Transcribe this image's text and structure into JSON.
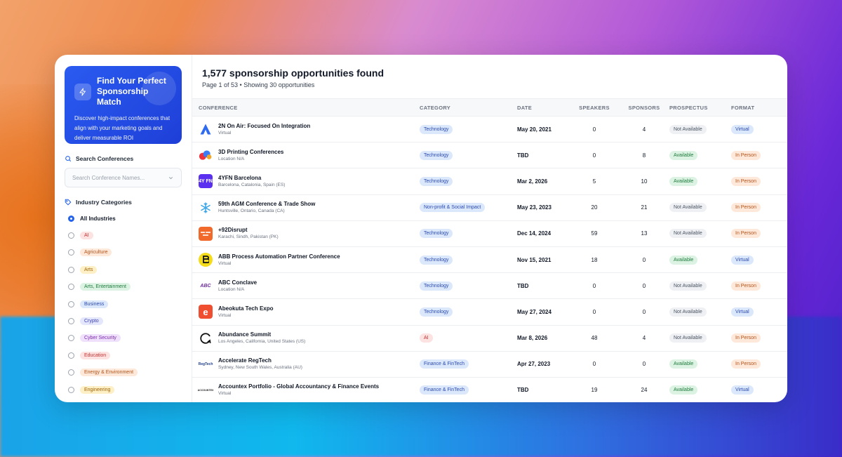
{
  "hero": {
    "title": "Find Your Perfect Sponsorship Match",
    "description": "Discover high-impact conferences that align with your marketing goals and deliver measurable ROI"
  },
  "search": {
    "label": "Search Conferences",
    "placeholder": "Search Conference Names..."
  },
  "industry": {
    "label": "Industry Categories",
    "all_label": "All Industries",
    "items": [
      {
        "label": "AI",
        "bg": "#fde2e2",
        "fg": "#c53030"
      },
      {
        "label": "Agriculture",
        "bg": "#fde8d9",
        "fg": "#b4531b"
      },
      {
        "label": "Arts",
        "bg": "#fdf0c7",
        "fg": "#a16207"
      },
      {
        "label": "Arts, Entertainment",
        "bg": "#dcf3e3",
        "fg": "#1f7a3d"
      },
      {
        "label": "Business",
        "bg": "#dbe7fb",
        "fg": "#2b4bb0"
      },
      {
        "label": "Crypto",
        "bg": "#e4e7fb",
        "fg": "#3b3fb0"
      },
      {
        "label": "Cyber Security",
        "bg": "#efe1fb",
        "fg": "#7c2bb0"
      },
      {
        "label": "Education",
        "bg": "#fde2e2",
        "fg": "#c53030"
      },
      {
        "label": "Energy & Environment",
        "bg": "#fde8d9",
        "fg": "#b4531b"
      },
      {
        "label": "Engineering",
        "bg": "#fdf0c7",
        "fg": "#a16207"
      }
    ]
  },
  "results": {
    "title": "1,577 sponsorship opportunities found",
    "subtitle": "Page 1 of 53 • Showing 30 opportunities"
  },
  "table": {
    "headers": {
      "conference": "CONFERENCE",
      "category": "CATEGORY",
      "date": "DATE",
      "speakers": "SPEAKERS",
      "sponsors": "SPONSORS",
      "prospectus": "PROSPECTUS",
      "format": "FORMAT"
    },
    "rows": [
      {
        "name": "2N On Air: Focused On Integration",
        "location": "Virtual",
        "category": "Technology",
        "cat": "tech",
        "date": "May 20, 2021",
        "speakers": "0",
        "sponsors": "4",
        "prospectus": "Not Available",
        "format": "Virtual",
        "logo": "triangle"
      },
      {
        "name": "3D Printing Conferences",
        "location": "Location N/A",
        "category": "Technology",
        "cat": "tech",
        "date": "TBD",
        "speakers": "0",
        "sponsors": "8",
        "prospectus": "Available",
        "format": "In Person",
        "logo": "blob"
      },
      {
        "name": "4YFN Barcelona",
        "location": "Barcelona, Catalonia, Spain (ES)",
        "category": "Technology",
        "cat": "tech",
        "date": "Mar 2, 2026",
        "speakers": "5",
        "sponsors": "10",
        "prospectus": "Available",
        "format": "In Person",
        "logo": "4yfn",
        "logo_text": "4Y FN"
      },
      {
        "name": "59th AGM Conference & Trade Show",
        "location": "Huntsville, Ontario, Canada (CA)",
        "category": "Non-profit & Social Impact",
        "cat": "np",
        "date": "May 23, 2023",
        "speakers": "20",
        "sponsors": "21",
        "prospectus": "Not Available",
        "format": "In Person",
        "logo": "snow"
      },
      {
        "name": "+92Disrupt",
        "location": "Karachi, Sindh, Pakistan (PK)",
        "category": "Technology",
        "cat": "tech",
        "date": "Dec 14, 2024",
        "speakers": "59",
        "sponsors": "13",
        "prospectus": "Not Available",
        "format": "In Person",
        "logo": "orange"
      },
      {
        "name": "ABB Process Automation Partner Conference",
        "location": "Virtual",
        "category": "Technology",
        "cat": "tech",
        "date": "Nov 15, 2021",
        "speakers": "18",
        "sponsors": "0",
        "prospectus": "Available",
        "format": "Virtual",
        "logo": "yellow"
      },
      {
        "name": "ABC Conclave",
        "location": "Location N/A",
        "category": "Technology",
        "cat": "tech",
        "date": "TBD",
        "speakers": "0",
        "sponsors": "0",
        "prospectus": "Not Available",
        "format": "In Person",
        "logo": "abc",
        "logo_text": "ABC"
      },
      {
        "name": "Abeokuta Tech Expo",
        "location": "Virtual",
        "category": "Technology",
        "cat": "tech",
        "date": "May 27, 2024",
        "speakers": "0",
        "sponsors": "0",
        "prospectus": "Not Available",
        "format": "Virtual",
        "logo": "e",
        "logo_text": "e"
      },
      {
        "name": "Abundance Summit",
        "location": "Los Angeles, California, United States (US)",
        "category": "AI",
        "cat": "ai",
        "date": "Mar 8, 2026",
        "speakers": "48",
        "sponsors": "4",
        "prospectus": "Not Available",
        "format": "In Person",
        "logo": "ring"
      },
      {
        "name": "Accelerate RegTech",
        "location": "Sydney, New South Wales, Australia (AU)",
        "category": "Finance & FinTech",
        "cat": "fin",
        "date": "Apr 27, 2023",
        "speakers": "0",
        "sponsors": "0",
        "prospectus": "Available",
        "format": "In Person",
        "logo": "regtech",
        "logo_text": "RegTech"
      },
      {
        "name": "Accountex Portfolio - Global Accountancy & Finance Events",
        "location": "Virtual",
        "category": "Finance & FinTech",
        "cat": "fin",
        "date": "TBD",
        "speakers": "19",
        "sponsors": "24",
        "prospectus": "Available",
        "format": "Virtual",
        "logo": "accountex",
        "logo_text": "ACCOUNTEX"
      }
    ]
  }
}
